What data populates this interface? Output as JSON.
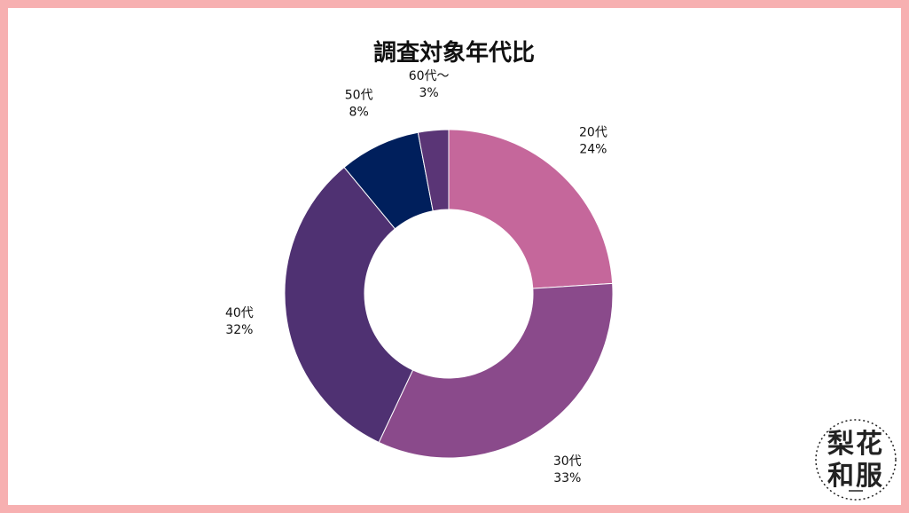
{
  "chart_data": {
    "type": "pie",
    "title": "調査対象年代比",
    "categories": [
      "20代",
      "30代",
      "40代",
      "50代",
      "60代〜"
    ],
    "values": [
      24,
      33,
      32,
      8,
      3
    ],
    "value_unit": "%",
    "donut": true,
    "start_angle": "top",
    "direction": "clockwise",
    "colors": [
      "#c5679b",
      "#8a4a8b",
      "#4f3172",
      "#001f5c",
      "#5a3576"
    ],
    "labels": [
      {
        "name": "20代",
        "pct": "24%"
      },
      {
        "name": "30代",
        "pct": "33%"
      },
      {
        "name": "40代",
        "pct": "32%"
      },
      {
        "name": "50代",
        "pct": "8%"
      },
      {
        "name": "60代〜",
        "pct": "3%"
      }
    ]
  },
  "logo": {
    "name": "rika-wafuku-logo",
    "lines": [
      "梨花",
      "和服"
    ],
    "color": "#222222"
  },
  "frame_color": "#f7b0b1"
}
